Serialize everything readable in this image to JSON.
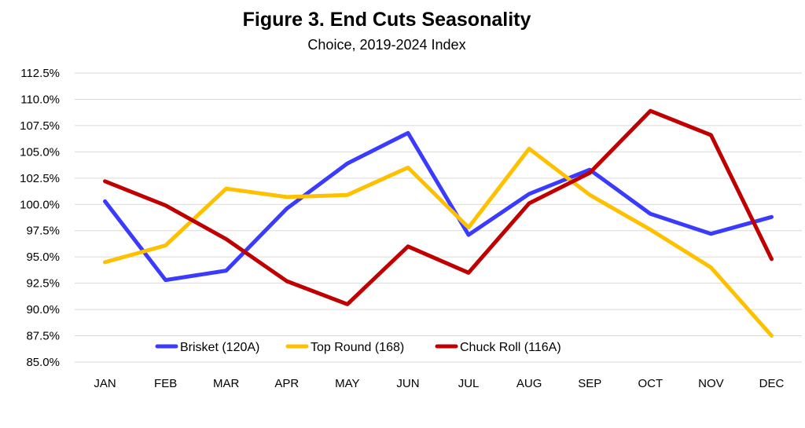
{
  "chart_data": {
    "type": "line",
    "title": "Figure 3. End Cuts Seasonality",
    "subtitle": "Choice, 2019-2024 Index",
    "xlabel": "",
    "ylabel": "",
    "categories": [
      "JAN",
      "FEB",
      "MAR",
      "APR",
      "MAY",
      "JUN",
      "JUL",
      "AUG",
      "SEP",
      "OCT",
      "NOV",
      "DEC"
    ],
    "ylim": [
      85.0,
      112.5
    ],
    "ytick_step": 2.5,
    "ytick_labels": [
      "85.0%",
      "87.5%",
      "90.0%",
      "92.5%",
      "95.0%",
      "97.5%",
      "100.0%",
      "102.5%",
      "105.0%",
      "107.5%",
      "110.0%",
      "112.5%"
    ],
    "grid": true,
    "legend_position": "bottom-left inside",
    "series": [
      {
        "name": "Brisket (120A)",
        "color": "#3b3bff",
        "values": [
          100.3,
          92.8,
          93.7,
          99.6,
          103.9,
          106.8,
          97.1,
          101.0,
          103.3,
          99.1,
          97.2,
          98.8
        ]
      },
      {
        "name": "Top Round (168)",
        "color": "#ffc000",
        "values": [
          94.5,
          96.1,
          101.5,
          100.7,
          100.9,
          103.5,
          97.8,
          105.3,
          100.9,
          97.6,
          94.0,
          87.5
        ]
      },
      {
        "name": "Chuck Roll (116A)",
        "color": "#c00000",
        "values": [
          102.2,
          99.9,
          96.7,
          92.7,
          90.5,
          96.0,
          93.5,
          100.1,
          103.0,
          108.9,
          106.6,
          94.8
        ]
      }
    ]
  }
}
